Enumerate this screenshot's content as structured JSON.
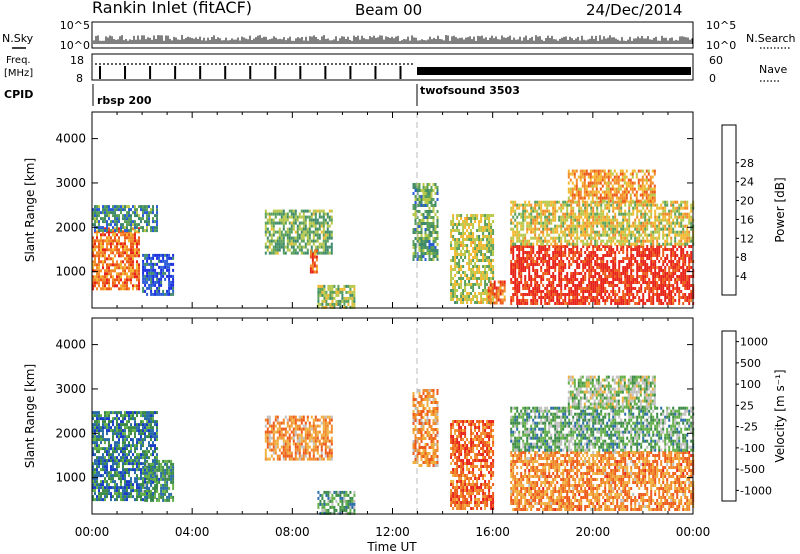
{
  "header": {
    "station": "Rankin Inlet (fitACF)",
    "beam": "Beam 00",
    "date": "24/Dec/2014"
  },
  "side_labels": {
    "nsky": "N.Sky",
    "nsearch": "N.Search",
    "freq_line1": "Freq.",
    "freq_line2": "[MHz]",
    "nave": "Nave",
    "cpid": "CPID"
  },
  "noise_axis": {
    "top": "10^5",
    "bottom": "10^0"
  },
  "freq_axis": {
    "left_top": "18",
    "left_bottom": "8",
    "right_top": "60",
    "right_bottom": "0"
  },
  "cpid_labels": [
    "rbsp 200",
    "twofsound 3503"
  ],
  "chart_data": [
    {
      "type": "heatmap",
      "name": "power",
      "ylabel": "Slant Range [km]",
      "y_ticks": [
        "1000",
        "2000",
        "3000",
        "4000"
      ],
      "y_range_km": [
        180,
        4600
      ],
      "x_range_hours": [
        0,
        24
      ],
      "colorbar": {
        "label": "Power [dB]",
        "ticks": [
          "4",
          "8",
          "12",
          "16",
          "20",
          "24",
          "28"
        ],
        "colors": [
          "#1a2ee0",
          "#2a5bd8",
          "#3f8a6a",
          "#5aa05a",
          "#b8c84a",
          "#f2b830",
          "#f28a2a",
          "#ee5a1a",
          "#e8241a"
        ]
      },
      "blobs": [
        {
          "t0": 0.0,
          "t1": 1.9,
          "r0": 600,
          "r1": 2000,
          "v": 0.78
        },
        {
          "t0": 0.0,
          "t1": 2.6,
          "r0": 1900,
          "r1": 2500,
          "v": 0.3
        },
        {
          "t0": 2.0,
          "t1": 3.2,
          "r0": 500,
          "r1": 1400,
          "v": 0.12
        },
        {
          "t0": 6.9,
          "t1": 9.6,
          "r0": 1400,
          "r1": 2400,
          "v": 0.4
        },
        {
          "t0": 8.7,
          "t1": 9.0,
          "r0": 1000,
          "r1": 1500,
          "v": 0.82
        },
        {
          "t0": 9.0,
          "t1": 10.5,
          "r0": 200,
          "r1": 700,
          "v": 0.45
        },
        {
          "t0": 12.8,
          "t1": 13.8,
          "r0": 1300,
          "r1": 3000,
          "v": 0.35
        },
        {
          "t0": 14.3,
          "t1": 16.0,
          "r0": 300,
          "r1": 2300,
          "v": 0.5
        },
        {
          "t0": 15.8,
          "t1": 16.5,
          "r0": 300,
          "r1": 800,
          "v": 0.82
        },
        {
          "t0": 16.7,
          "t1": 24.0,
          "r0": 300,
          "r1": 1600,
          "v": 0.95
        },
        {
          "t0": 16.7,
          "t1": 24.0,
          "r0": 1600,
          "r1": 2600,
          "v": 0.55
        },
        {
          "t0": 19.0,
          "t1": 22.5,
          "r0": 2600,
          "r1": 3300,
          "v": 0.7
        }
      ]
    },
    {
      "type": "heatmap",
      "name": "velocity",
      "ylabel": "Slant Range [km]",
      "y_ticks": [
        "1000",
        "2000",
        "3000",
        "4000"
      ],
      "y_range_km": [
        180,
        4600
      ],
      "x_range_hours": [
        0,
        24
      ],
      "x_ticks": [
        "00:00",
        "04:00",
        "08:00",
        "12:00",
        "16:00",
        "20:00",
        "00:00"
      ],
      "xlabel": "Time UT",
      "colorbar": {
        "label": "Velocity [m s⁻¹]",
        "ticks": [
          "1000",
          "500",
          "100",
          "25",
          "-25",
          "-100",
          "-500",
          "-1000"
        ],
        "colors": [
          "#1a3cc8",
          "#2a6ca8",
          "#3c8a48",
          "#64b048",
          "#c0c0c0",
          "#f0b040",
          "#f08a2a",
          "#ee5a1a",
          "#e8241a"
        ]
      },
      "blobs": [
        {
          "t0": 0.0,
          "t1": 2.6,
          "r0": 500,
          "r1": 2500,
          "v": 0.22
        },
        {
          "t0": 2.0,
          "t1": 3.2,
          "r0": 500,
          "r1": 1400,
          "v": 0.28
        },
        {
          "t0": 6.9,
          "t1": 9.6,
          "r0": 1400,
          "r1": 2400,
          "v": 0.68
        },
        {
          "t0": 9.0,
          "t1": 10.5,
          "r0": 200,
          "r1": 700,
          "v": 0.34
        },
        {
          "t0": 12.8,
          "t1": 13.8,
          "r0": 1300,
          "r1": 3000,
          "v": 0.7
        },
        {
          "t0": 14.3,
          "t1": 16.0,
          "r0": 300,
          "r1": 2300,
          "v": 0.82
        },
        {
          "t0": 16.7,
          "t1": 24.0,
          "r0": 300,
          "r1": 1600,
          "v": 0.72
        },
        {
          "t0": 16.7,
          "t1": 24.0,
          "r0": 1600,
          "r1": 2600,
          "v": 0.35
        },
        {
          "t0": 19.0,
          "t1": 22.5,
          "r0": 2600,
          "r1": 3300,
          "v": 0.45
        }
      ]
    }
  ]
}
